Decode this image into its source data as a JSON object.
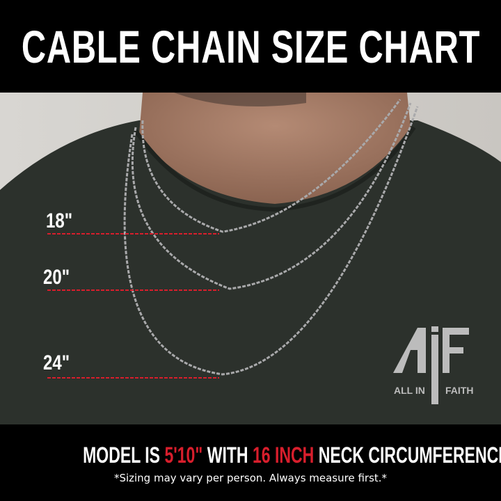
{
  "title": "CABLE CHAIN SIZE CHART",
  "sizes": [
    {
      "label": "18\""
    },
    {
      "label": "20\""
    },
    {
      "label": "24\""
    }
  ],
  "logo": {
    "mark": "AiF",
    "text_left": "ALL IN",
    "text_right": "FAITH"
  },
  "footer": {
    "part1": "MODEL IS ",
    "height": "5'10\"",
    "part2": " WITH ",
    "neck": "16 INCH",
    "part3": " NECK CIRCUMFERENCE",
    "note": "*Sizing may vary per person. Always measure first.*"
  },
  "colors": {
    "accent": "#d81e2c",
    "background": "#000000",
    "shirt": "#2b302b"
  }
}
